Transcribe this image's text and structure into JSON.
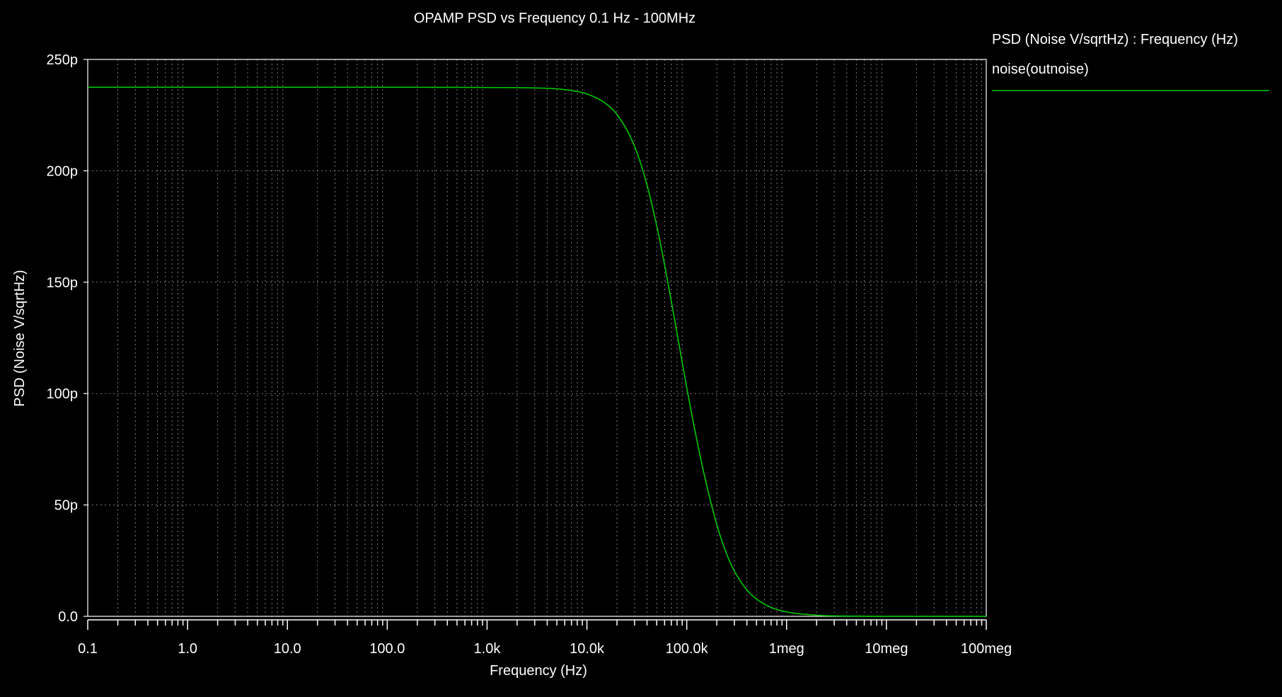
{
  "chart_data": {
    "type": "line",
    "title": "OPAMP PSD vs Frequency 0.1 Hz - 100MHz",
    "xlabel": "Frequency (Hz)",
    "ylabel": "PSD (Noise V/sqrtHz)",
    "x_scale": "log",
    "xlim": [
      0.1,
      100000000
    ],
    "ylim": [
      0,
      250
    ],
    "y_unit": "p",
    "grid": true,
    "legend": {
      "placement": "right",
      "title": "PSD (Noise V/sqrtHz) : Frequency (Hz)",
      "entries": [
        "noise(outnoise)"
      ]
    },
    "x_ticks": [
      {
        "value": 0.1,
        "label": "0.1"
      },
      {
        "value": 1,
        "label": "1.0"
      },
      {
        "value": 10,
        "label": "10.0"
      },
      {
        "value": 100,
        "label": "100.0"
      },
      {
        "value": 1000,
        "label": "1.0k"
      },
      {
        "value": 10000,
        "label": "10.0k"
      },
      {
        "value": 100000,
        "label": "100.0k"
      },
      {
        "value": 1000000,
        "label": "1meg"
      },
      {
        "value": 10000000,
        "label": "10meg"
      },
      {
        "value": 100000000,
        "label": "100meg"
      }
    ],
    "y_ticks": [
      {
        "value": 0,
        "label": "0.0"
      },
      {
        "value": 50,
        "label": "50p"
      },
      {
        "value": 100,
        "label": "100p"
      },
      {
        "value": 150,
        "label": "150p"
      },
      {
        "value": 200,
        "label": "200p"
      },
      {
        "value": 250,
        "label": "250p"
      }
    ],
    "series": [
      {
        "name": "noise(outnoise)",
        "color": "#00c800",
        "x": [
          0.1,
          1,
          10,
          100,
          1000,
          3000,
          5000,
          8000,
          10000,
          15000,
          20000,
          30000,
          40000,
          50000,
          60000,
          70000,
          80000,
          100000,
          120000,
          150000,
          200000,
          250000,
          300000,
          400000,
          500000,
          700000,
          1000000,
          2000000,
          3000000,
          5000000,
          10000000,
          100000000
        ],
        "y": [
          237.5,
          237.5,
          237.5,
          237.5,
          237.4,
          237.2,
          236.8,
          235.6,
          234.5,
          230.6,
          225.3,
          211.0,
          193.6,
          175.3,
          157.7,
          141.5,
          127.0,
          102.7,
          84.1,
          63.4,
          41.2,
          28.2,
          20.3,
          11.9,
          7.8,
          4.0,
          2.0,
          0.5,
          0.2,
          0.1,
          0.0,
          0.0
        ]
      }
    ]
  },
  "colors": {
    "background": "#000000",
    "foreground": "#ffffff",
    "grid": "#9a9a9a",
    "series": "#00c800"
  }
}
